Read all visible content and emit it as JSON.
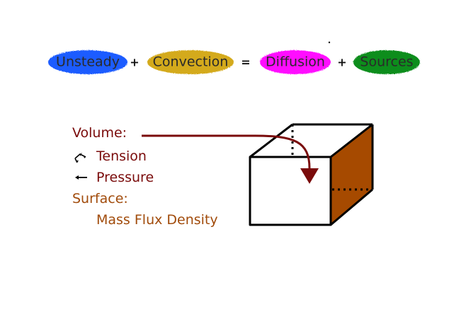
{
  "equation": {
    "terms": [
      {
        "label": "Unsteady",
        "color": "#1f5bff"
      },
      {
        "label": "Convection",
        "color": "#d4aa1b"
      },
      {
        "label": "Diffusion",
        "color": "#ff10ff"
      },
      {
        "label": "Sources",
        "color": "#0b8d1f"
      }
    ],
    "operators": [
      "+",
      "=",
      "+"
    ]
  },
  "legend": {
    "volume_label": "Volume:",
    "tension_label": "Tension",
    "pressure_label": "Pressure",
    "surface_label": "Surface:",
    "mass_flux_label": "Mass Flux Density",
    "colors": {
      "volume": "#7a0b0b",
      "surface": "#a14b0b",
      "icon": "#000000"
    },
    "icons": {
      "tension": "tension-icon",
      "pressure": "pressure-arrow-icon"
    }
  },
  "diagram": {
    "front_face_fill": "#ffffff",
    "side_face_fill": "#a64a00",
    "edge_color": "#000000",
    "arrow_color": "#7a0b0b"
  }
}
